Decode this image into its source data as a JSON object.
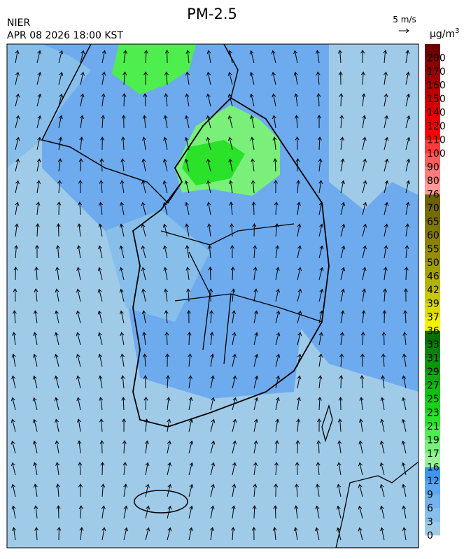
{
  "header": {
    "title": "PM-2.5",
    "agency": "NIER",
    "datetime": "APR 08 2026 18:00 KST"
  },
  "wind_scale": {
    "label": "5 m/s"
  },
  "colorbar": {
    "unit": {
      "base": "μg/m",
      "superscript": "3"
    },
    "labels": [
      0,
      3,
      6,
      9,
      12,
      16,
      17,
      19,
      21,
      23,
      25,
      27,
      29,
      31,
      33,
      36,
      37,
      39,
      42,
      46,
      50,
      55,
      60,
      65,
      70,
      76,
      80,
      90,
      100,
      110,
      120,
      140,
      150,
      160,
      170,
      200
    ],
    "colors": [
      "#9fcbe9",
      "#88bfea",
      "#72b2ee",
      "#5ea6ef",
      "#3d96f0",
      "#98f598",
      "#7af07a",
      "#4eee4e",
      "#2ae22a",
      "#18d218",
      "#12bf12",
      "#0dab0d",
      "#0a970a",
      "#088308",
      "#066f06",
      "#f2f200",
      "#dcdc00",
      "#c8c800",
      "#b4b400",
      "#a2a000",
      "#968e00",
      "#8a8200",
      "#807800",
      "#766c00",
      "#6c6200",
      "#ff9a9a",
      "#ff7c7c",
      "#ff5c5c",
      "#ff3c3c",
      "#ff0000",
      "#e60000",
      "#d20000",
      "#bc0000",
      "#a20000",
      "#8c0000",
      "#6e0000"
    ]
  }
}
